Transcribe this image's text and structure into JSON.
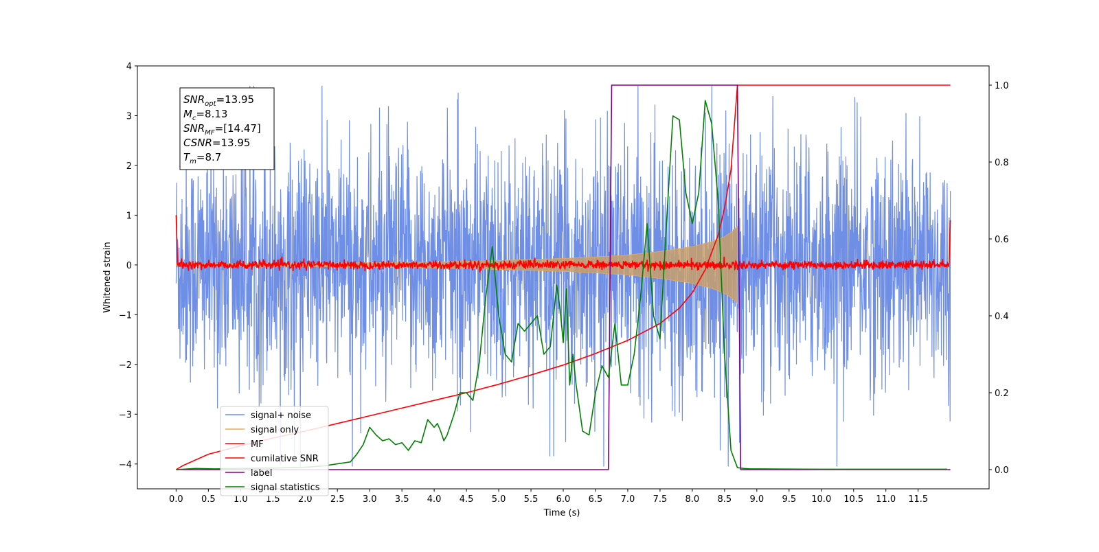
{
  "chart_data": {
    "type": "line",
    "title": "",
    "xlabel": "Time (s)",
    "ylabel": "Whitened strain",
    "xlim": [
      -0.6,
      12.6
    ],
    "ylim": [
      -4.5,
      4.0
    ],
    "y2lim": [
      -0.05,
      1.05
    ],
    "x_ticks": [
      0.0,
      0.5,
      1.0,
      1.5,
      2.0,
      2.5,
      3.0,
      3.5,
      4.0,
      4.5,
      5.0,
      5.5,
      6.0,
      6.5,
      7.0,
      7.5,
      8.0,
      8.5,
      9.0,
      9.5,
      10.0,
      10.5,
      11.0,
      11.5
    ],
    "x_tick_labels": [
      "0.0",
      "0.5",
      "1.0",
      "1.5",
      "2.0",
      "2.5",
      "3.0",
      "3.5",
      "4.0",
      "4.5",
      "5.0",
      "5.5",
      "6.0",
      "6.5",
      "7.0",
      "7.5",
      "8.0",
      "8.5",
      "9.0",
      "9.5",
      "10.0",
      "10.5",
      "11.0",
      "11.5"
    ],
    "y_ticks": [
      -4,
      -3,
      -2,
      -1,
      0,
      1,
      2,
      3,
      4
    ],
    "y_tick_labels": [
      "−4",
      "−3",
      "−2",
      "−1",
      "0",
      "1",
      "2",
      "3",
      "4"
    ],
    "y2_ticks": [
      0.0,
      0.2,
      0.4,
      0.6,
      0.8,
      1.0
    ],
    "y2_tick_labels": [
      "0.0",
      "0.2",
      "0.4",
      "0.6",
      "0.8",
      "1.0"
    ],
    "grid": false,
    "legend_position": "lower-left",
    "annotation": [
      {
        "main": "SNR",
        "sub": "opt",
        "value": "=13.95"
      },
      {
        "main": "M",
        "sub": "c",
        "value": "=8.13"
      },
      {
        "main": "SNR",
        "sub": "MF",
        "value": "=[14.47]"
      },
      {
        "main": "CSNR",
        "sub": "",
        "value": "=13.95"
      },
      {
        "main": "T",
        "sub": "m",
        "value": "=8.7"
      }
    ],
    "series": [
      {
        "name": "signal+ noise",
        "axis": "left",
        "color": "#6f8ee6",
        "kind": "noise",
        "amplitude": 1.4,
        "x_range": [
          0.0,
          12.0
        ]
      },
      {
        "name": "signal only",
        "axis": "left",
        "color": "#e8ab57",
        "kind": "chirp_envelope",
        "x": [
          0.0,
          2.0,
          4.0,
          5.0,
          6.0,
          6.5,
          7.0,
          7.5,
          8.0,
          8.3,
          8.5,
          8.65,
          8.7
        ],
        "amplitude": [
          0.02,
          0.03,
          0.06,
          0.09,
          0.13,
          0.16,
          0.2,
          0.27,
          0.37,
          0.47,
          0.57,
          0.7,
          0.78
        ]
      },
      {
        "name": "MF",
        "axis": "left",
        "color": "#ff0000",
        "kind": "flat_noise",
        "center": 0.0,
        "amplitude": 0.08,
        "x_range": [
          0.0,
          12.0
        ]
      },
      {
        "name": "cumilative SNR",
        "axis": "right",
        "color": "#ff0000",
        "kind": "line",
        "x": [
          0.0,
          0.1,
          0.3,
          0.5,
          1.0,
          1.5,
          2.0,
          2.5,
          3.0,
          3.5,
          4.0,
          4.5,
          5.0,
          5.5,
          6.0,
          6.5,
          7.0,
          7.5,
          7.8,
          8.0,
          8.2,
          8.4,
          8.5,
          8.6,
          8.7,
          12.0
        ],
        "y": [
          0.0,
          0.01,
          0.025,
          0.04,
          0.062,
          0.082,
          0.1,
          0.12,
          0.14,
          0.16,
          0.18,
          0.2,
          0.222,
          0.246,
          0.272,
          0.302,
          0.336,
          0.38,
          0.42,
          0.46,
          0.52,
          0.61,
          0.68,
          0.78,
          1.0,
          1.0
        ]
      },
      {
        "name": "label",
        "axis": "right",
        "color": "#800080",
        "kind": "line",
        "x": [
          0.0,
          6.7,
          6.75,
          8.7,
          8.75,
          12.0
        ],
        "y": [
          0.0,
          0.0,
          1.0,
          1.0,
          0.0,
          0.0
        ]
      },
      {
        "name": "signal statistics",
        "axis": "right",
        "color": "#008000",
        "kind": "line",
        "x": [
          0.0,
          0.3,
          0.6,
          1.0,
          1.5,
          2.0,
          2.3,
          2.5,
          2.7,
          2.8,
          2.9,
          3.0,
          3.1,
          3.2,
          3.3,
          3.4,
          3.5,
          3.6,
          3.7,
          3.8,
          3.9,
          4.0,
          4.05,
          4.1,
          4.15,
          4.2,
          4.3,
          4.4,
          4.5,
          4.6,
          4.7,
          4.8,
          4.9,
          5.0,
          5.1,
          5.2,
          5.3,
          5.4,
          5.5,
          5.6,
          5.7,
          5.8,
          5.9,
          5.95,
          6.0,
          6.05,
          6.1,
          6.15,
          6.2,
          6.3,
          6.4,
          6.5,
          6.6,
          6.7,
          6.8,
          6.9,
          7.0,
          7.1,
          7.2,
          7.3,
          7.4,
          7.5,
          7.6,
          7.7,
          7.8,
          7.9,
          8.0,
          8.1,
          8.2,
          8.3,
          8.4,
          8.5,
          8.6,
          8.7,
          8.8,
          8.9,
          9.0,
          10.0,
          11.0,
          11.95
        ],
        "y": [
          0.0,
          0.003,
          0.002,
          0.003,
          0.004,
          0.006,
          0.01,
          0.015,
          0.02,
          0.04,
          0.065,
          0.11,
          0.09,
          0.075,
          0.08,
          0.065,
          0.07,
          0.05,
          0.075,
          0.07,
          0.13,
          0.11,
          0.12,
          0.1,
          0.075,
          0.09,
          0.14,
          0.2,
          0.2,
          0.18,
          0.28,
          0.45,
          0.58,
          0.4,
          0.3,
          0.28,
          0.38,
          0.36,
          0.38,
          0.4,
          0.3,
          0.32,
          0.48,
          0.42,
          0.33,
          0.47,
          0.22,
          0.3,
          0.22,
          0.1,
          0.09,
          0.2,
          0.27,
          0.24,
          0.38,
          0.22,
          0.22,
          0.3,
          0.45,
          0.64,
          0.4,
          0.34,
          0.64,
          0.92,
          0.91,
          0.72,
          0.64,
          0.72,
          0.96,
          0.9,
          0.7,
          0.3,
          0.05,
          0.005,
          0.003,
          0.002,
          0.002,
          0.001,
          0.001,
          0.001
        ]
      }
    ]
  }
}
